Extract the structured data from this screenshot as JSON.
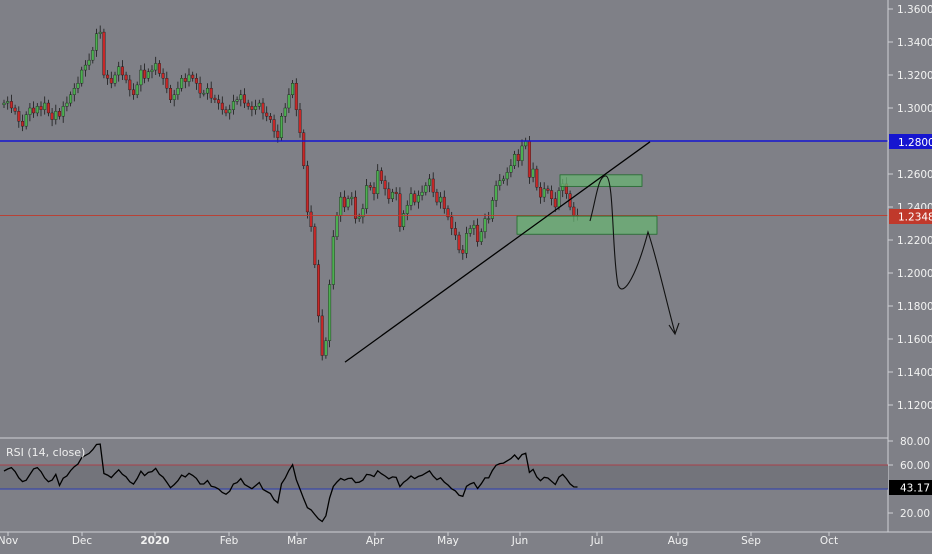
{
  "chart_data": [
    {
      "type": "candlestick",
      "title": "",
      "xlabel": "",
      "ylabel": "",
      "ylim": [
        1.1,
        1.37
      ],
      "y_ticks": [
        "1.3600",
        "1.3400",
        "1.3200",
        "1.3000",
        "1.2800",
        "1.2600",
        "1.2400",
        "1.2200",
        "1.2000",
        "1.1800",
        "1.1600",
        "1.1400",
        "1.1200"
      ],
      "y_tick_values": [
        1.36,
        1.34,
        1.32,
        1.3,
        1.28,
        1.26,
        1.24,
        1.22,
        1.2,
        1.18,
        1.16,
        1.14,
        1.12
      ],
      "x_ticks": [
        "Nov",
        "Dec",
        "2020",
        "Feb",
        "Mar",
        "Apr",
        "May",
        "Jun",
        "Jul",
        "Aug",
        "Sep",
        "Oct"
      ],
      "grid": false,
      "price_labels": {
        "resistance": "1.2800",
        "current": "1.2348"
      },
      "resistance_level": 1.28,
      "current_price": 1.2348,
      "closes": [
        1.303,
        1.304,
        1.3,
        1.298,
        1.292,
        1.289,
        1.296,
        1.3,
        1.297,
        1.301,
        1.299,
        1.303,
        1.297,
        1.293,
        1.298,
        1.295,
        1.301,
        1.303,
        1.308,
        1.312,
        1.315,
        1.323,
        1.326,
        1.329,
        1.335,
        1.345,
        1.346,
        1.32,
        1.318,
        1.315,
        1.32,
        1.325,
        1.32,
        1.317,
        1.311,
        1.308,
        1.314,
        1.323,
        1.318,
        1.322,
        1.323,
        1.327,
        1.321,
        1.318,
        1.312,
        1.305,
        1.308,
        1.312,
        1.318,
        1.316,
        1.32,
        1.318,
        1.315,
        1.309,
        1.309,
        1.312,
        1.306,
        1.305,
        1.303,
        1.299,
        1.297,
        1.299,
        1.304,
        1.305,
        1.308,
        1.303,
        1.301,
        1.299,
        1.301,
        1.303,
        1.297,
        1.295,
        1.293,
        1.286,
        1.282,
        1.295,
        1.3,
        1.308,
        1.315,
        1.299,
        1.285,
        1.265,
        1.237,
        1.228,
        1.205,
        1.174,
        1.15,
        1.159,
        1.193,
        1.222,
        1.235,
        1.246,
        1.24,
        1.245,
        1.246,
        1.233,
        1.234,
        1.239,
        1.253,
        1.252,
        1.248,
        1.262,
        1.256,
        1.251,
        1.245,
        1.249,
        1.248,
        1.228,
        1.236,
        1.241,
        1.248,
        1.243,
        1.247,
        1.249,
        1.253,
        1.257,
        1.249,
        1.243,
        1.246,
        1.239,
        1.234,
        1.227,
        1.223,
        1.214,
        1.212,
        1.224,
        1.227,
        1.229,
        1.219,
        1.225,
        1.233,
        1.233,
        1.244,
        1.253,
        1.256,
        1.257,
        1.261,
        1.265,
        1.272,
        1.268,
        1.277,
        1.28,
        1.258,
        1.263,
        1.252,
        1.246,
        1.251,
        1.25,
        1.245,
        1.24,
        1.25,
        1.254,
        1.248,
        1.24,
        1.235,
        1.2348
      ],
      "annotations": [
        "trendline",
        "supply-zone-upper",
        "demand-zone-lower",
        "projected-path",
        "arrow-down"
      ],
      "rsi": {
        "label": "RSI (14, close)",
        "period": 14,
        "ylim": [
          10,
          80
        ],
        "ticks": [
          "80.00",
          "60.00",
          "20.00"
        ],
        "tick_values": [
          80,
          60,
          20
        ],
        "upper_band": 60,
        "lower_band": 40,
        "current_value": "43.17"
      },
      "colors": {
        "background": "#7f8087",
        "up_candle": "#4caf50",
        "down_candle": "#c62828",
        "resistance_line": "#1515d0",
        "current_price_line": "#c0392b",
        "zone_fill": "#6ab373",
        "zone_stroke": "#1f6b2a",
        "rsi_line": "#000000",
        "rsi_upper_band": "#a8404a",
        "rsi_lower_band": "#2b3bb0"
      }
    }
  ]
}
